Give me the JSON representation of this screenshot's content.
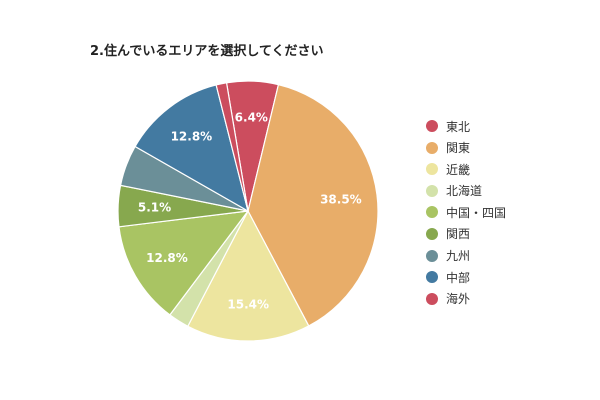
{
  "chart_data": {
    "type": "pie",
    "title": "2.住んでいるエリアを選択してください",
    "legend_position": "right",
    "slices": [
      {
        "label": "東北",
        "value": 1.3,
        "color": "#cc4d5e",
        "data_label": ""
      },
      {
        "label": "関東",
        "value": 38.5,
        "color": "#e8ad69",
        "data_label": "38.5%"
      },
      {
        "label": "近畿",
        "value": 15.4,
        "color": "#ede59f",
        "data_label": "15.4%"
      },
      {
        "label": "北海道",
        "value": 2.6,
        "color": "#d3e2aa",
        "data_label": ""
      },
      {
        "label": "中国・四国",
        "value": 12.8,
        "color": "#a9c463",
        "data_label": "12.8%"
      },
      {
        "label": "関西",
        "value": 5.1,
        "color": "#87a84e",
        "data_label": "5.1%"
      },
      {
        "label": "九州",
        "value": 5.1,
        "color": "#6b8f98",
        "data_label": ""
      },
      {
        "label": "中部",
        "value": 12.8,
        "color": "#437aa1",
        "data_label": "12.8%"
      },
      {
        "label": "海外",
        "value": 6.4,
        "color": "#cc4d5e",
        "data_label": "6.4%"
      }
    ],
    "draw_order": [
      8,
      1,
      2,
      3,
      4,
      5,
      6,
      7,
      0
    ]
  }
}
